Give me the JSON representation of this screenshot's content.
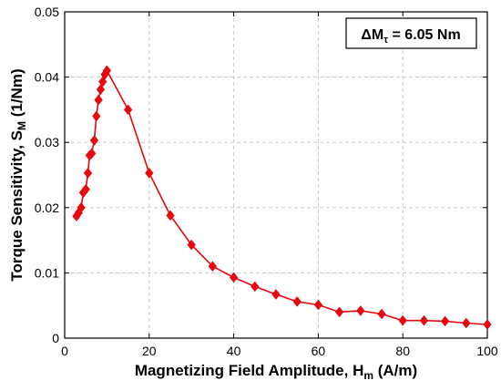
{
  "chart_data": {
    "type": "line",
    "xlabel": {
      "main": "Magnetizing Field Amplitude, H",
      "sub": "m",
      "tail": " (A/m)"
    },
    "ylabel": {
      "main": "Torque Sensitivity, S",
      "sub": "M",
      "tail": " (1/Nm)"
    },
    "xlim": [
      0,
      100
    ],
    "ylim": [
      0,
      0.05
    ],
    "xticks": [
      "0",
      "20",
      "40",
      "60",
      "80",
      "100"
    ],
    "yticks": [
      "0",
      "0.01",
      "0.02",
      "0.03",
      "0.04",
      "0.05"
    ],
    "grid": true,
    "annotation": {
      "main": "ΔM",
      "sub": "τ",
      "tail": " = 6.05 Nm",
      "position": "top-right"
    },
    "series": [
      {
        "color": "#e8070f",
        "marker": "diamond",
        "x": [
          2.8,
          3.3,
          3.9,
          4.4,
          5.0,
          5.5,
          5.9,
          6.4,
          7.0,
          7.5,
          8.0,
          8.5,
          9.0,
          9.5,
          10.0,
          15,
          20,
          25,
          30,
          35,
          40,
          45,
          50,
          55,
          60,
          65,
          70,
          75,
          80,
          85,
          90,
          95,
          100
        ],
        "y": [
          0.0187,
          0.0192,
          0.02,
          0.0223,
          0.0228,
          0.0253,
          0.028,
          0.0283,
          0.0303,
          0.034,
          0.0365,
          0.0381,
          0.0393,
          0.0404,
          0.041,
          0.035,
          0.0253,
          0.0188,
          0.0143,
          0.011,
          0.0093,
          0.0079,
          0.0067,
          0.0056,
          0.0051,
          0.004,
          0.0042,
          0.0037,
          0.0027,
          0.0027,
          0.0026,
          0.0023,
          0.0021
        ]
      }
    ]
  }
}
